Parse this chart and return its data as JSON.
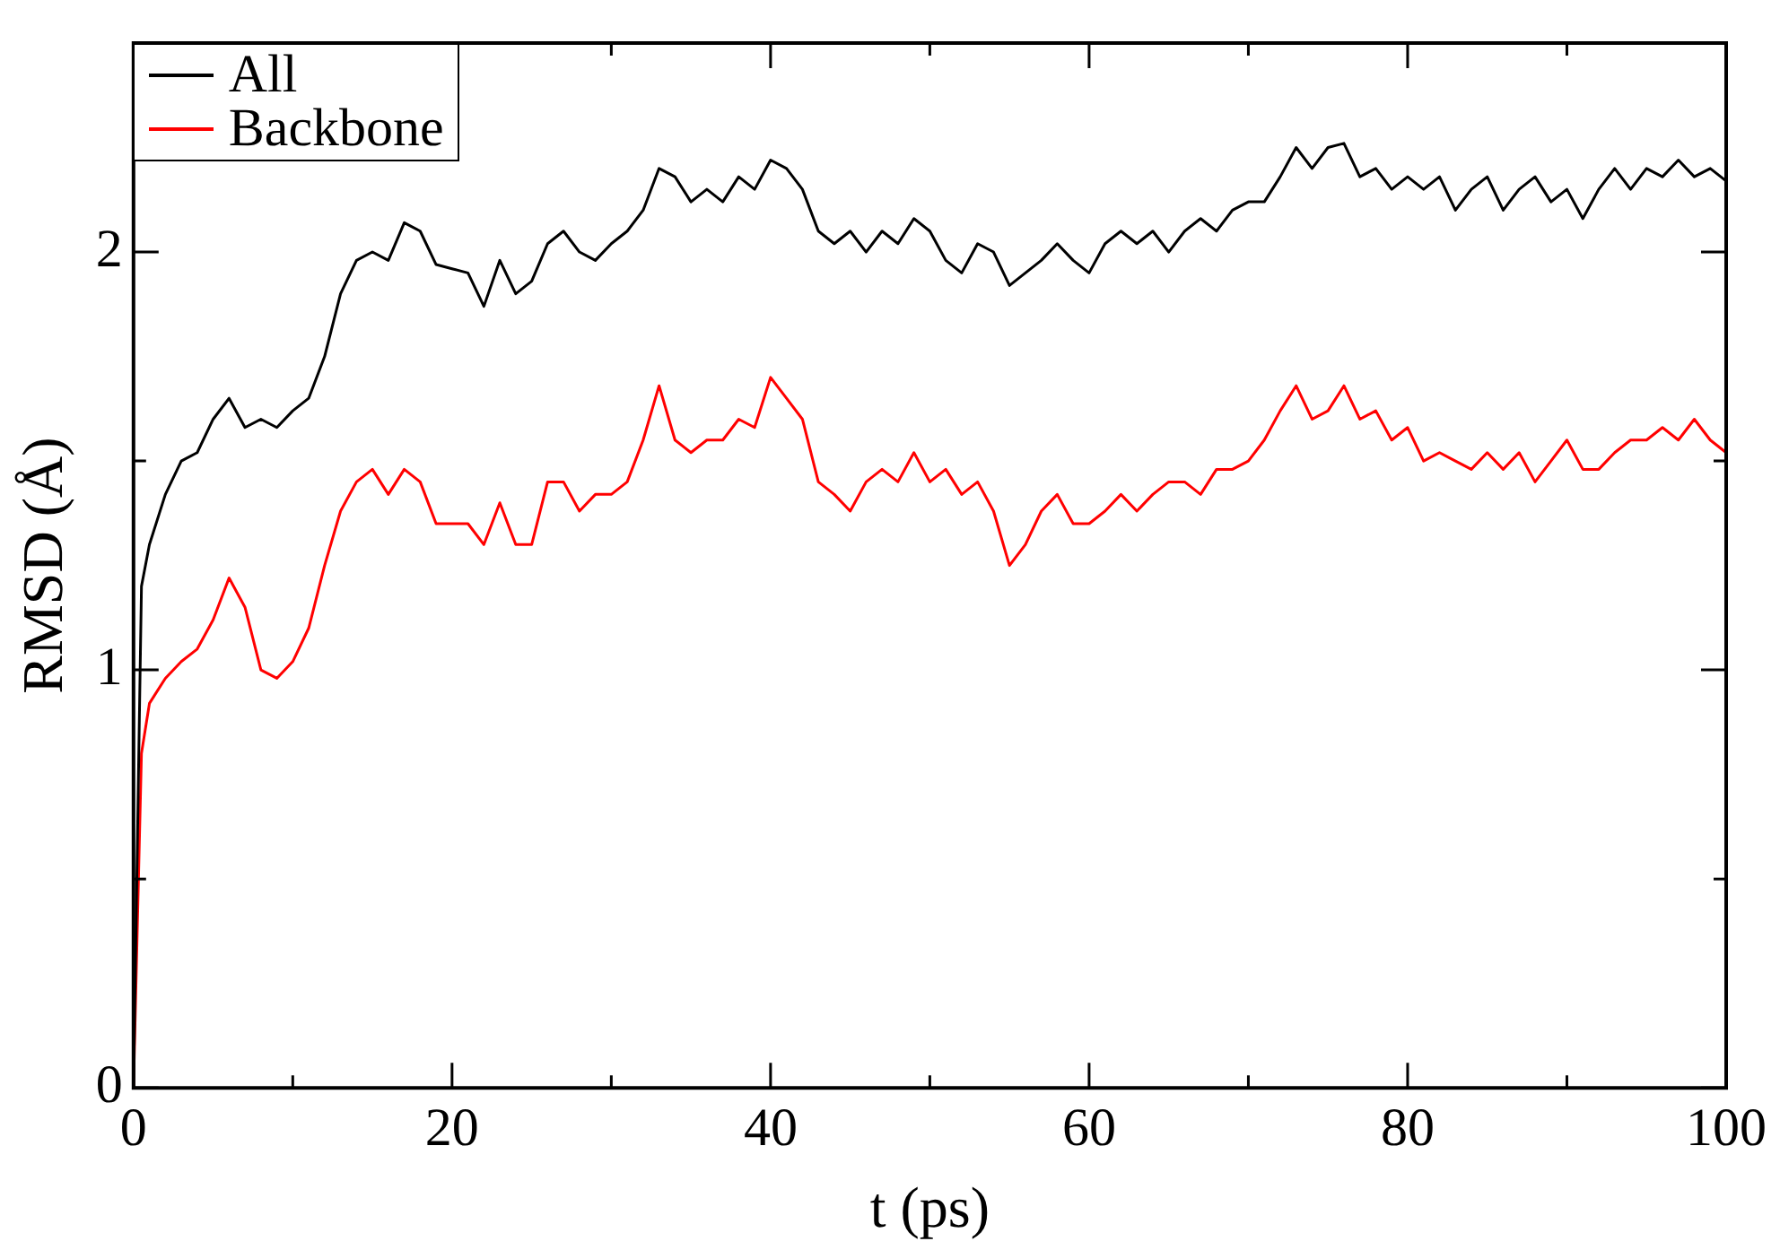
{
  "chart_data": {
    "type": "line",
    "xlabel": "t (ps)",
    "ylabel": "RMSD (Å)",
    "x": [
      0,
      0.5,
      1,
      2,
      3,
      4,
      5,
      6,
      7,
      8,
      9,
      10,
      11,
      12,
      13,
      14,
      15,
      16,
      17,
      18,
      19,
      20,
      21,
      22,
      23,
      24,
      25,
      26,
      27,
      28,
      29,
      30,
      31,
      32,
      33,
      34,
      35,
      36,
      37,
      38,
      39,
      40,
      41,
      42,
      43,
      44,
      45,
      46,
      47,
      48,
      49,
      50,
      51,
      52,
      53,
      54,
      55,
      56,
      57,
      58,
      59,
      60,
      61,
      62,
      63,
      64,
      65,
      66,
      67,
      68,
      69,
      70,
      71,
      72,
      73,
      74,
      75,
      76,
      77,
      78,
      79,
      80,
      81,
      82,
      83,
      84,
      85,
      86,
      87,
      88,
      89,
      90,
      91,
      92,
      93,
      94,
      95,
      96,
      97,
      98,
      99,
      100
    ],
    "series": [
      {
        "name": "All",
        "color": "#000000",
        "values": [
          0,
          1.2,
          1.3,
          1.42,
          1.5,
          1.52,
          1.6,
          1.65,
          1.58,
          1.6,
          1.58,
          1.62,
          1.65,
          1.75,
          1.9,
          1.98,
          2.0,
          1.98,
          2.07,
          2.05,
          1.97,
          1.96,
          1.95,
          1.87,
          1.98,
          1.9,
          1.93,
          2.02,
          2.05,
          2.0,
          1.98,
          2.02,
          2.05,
          2.1,
          2.2,
          2.18,
          2.12,
          2.15,
          2.12,
          2.18,
          2.15,
          2.22,
          2.2,
          2.15,
          2.05,
          2.02,
          2.05,
          2.0,
          2.05,
          2.02,
          2.08,
          2.05,
          1.98,
          1.95,
          2.02,
          2.0,
          1.92,
          1.95,
          1.98,
          2.02,
          1.98,
          1.95,
          2.02,
          2.05,
          2.02,
          2.05,
          2.0,
          2.05,
          2.08,
          2.05,
          2.1,
          2.12,
          2.12,
          2.18,
          2.25,
          2.2,
          2.25,
          2.26,
          2.18,
          2.2,
          2.15,
          2.18,
          2.15,
          2.18,
          2.1,
          2.15,
          2.18,
          2.1,
          2.15,
          2.18,
          2.12,
          2.15,
          2.08,
          2.15,
          2.2,
          2.15,
          2.2,
          2.18,
          2.22,
          2.18,
          2.2,
          2.17
        ]
      },
      {
        "name": "Backbone",
        "color": "#ff0000",
        "values": [
          0,
          0.8,
          0.92,
          0.98,
          1.02,
          1.05,
          1.12,
          1.22,
          1.15,
          1.0,
          0.98,
          1.02,
          1.1,
          1.25,
          1.38,
          1.45,
          1.48,
          1.42,
          1.48,
          1.45,
          1.35,
          1.35,
          1.35,
          1.3,
          1.4,
          1.3,
          1.3,
          1.45,
          1.45,
          1.38,
          1.42,
          1.42,
          1.45,
          1.55,
          1.68,
          1.55,
          1.52,
          1.55,
          1.55,
          1.6,
          1.58,
          1.7,
          1.65,
          1.6,
          1.45,
          1.42,
          1.38,
          1.45,
          1.48,
          1.45,
          1.52,
          1.45,
          1.48,
          1.42,
          1.45,
          1.38,
          1.25,
          1.3,
          1.38,
          1.42,
          1.35,
          1.35,
          1.38,
          1.42,
          1.38,
          1.42,
          1.45,
          1.45,
          1.42,
          1.48,
          1.48,
          1.5,
          1.55,
          1.62,
          1.68,
          1.6,
          1.62,
          1.68,
          1.6,
          1.62,
          1.55,
          1.58,
          1.5,
          1.52,
          1.5,
          1.48,
          1.52,
          1.48,
          1.52,
          1.45,
          1.5,
          1.55,
          1.48,
          1.48,
          1.52,
          1.55,
          1.55,
          1.58,
          1.55,
          1.6,
          1.55,
          1.52
        ]
      }
    ],
    "xlim": [
      0,
      100
    ],
    "xticks": [
      0,
      {
        "value": 10,
        "label": null
      },
      20,
      {
        "value": 30,
        "label": null
      },
      40,
      {
        "value": 50,
        "label": null
      },
      60,
      {
        "value": 70,
        "label": null
      },
      80,
      {
        "value": 90,
        "label": null
      },
      100
    ],
    "ylim": [
      0,
      2.5
    ],
    "yticks": [
      0,
      {
        "value": 0.5,
        "label": null
      },
      1,
      {
        "value": 1.5,
        "label": null
      },
      2
    ],
    "grid": false,
    "legend": "top left",
    "marker": "none",
    "line_style": "solid"
  }
}
